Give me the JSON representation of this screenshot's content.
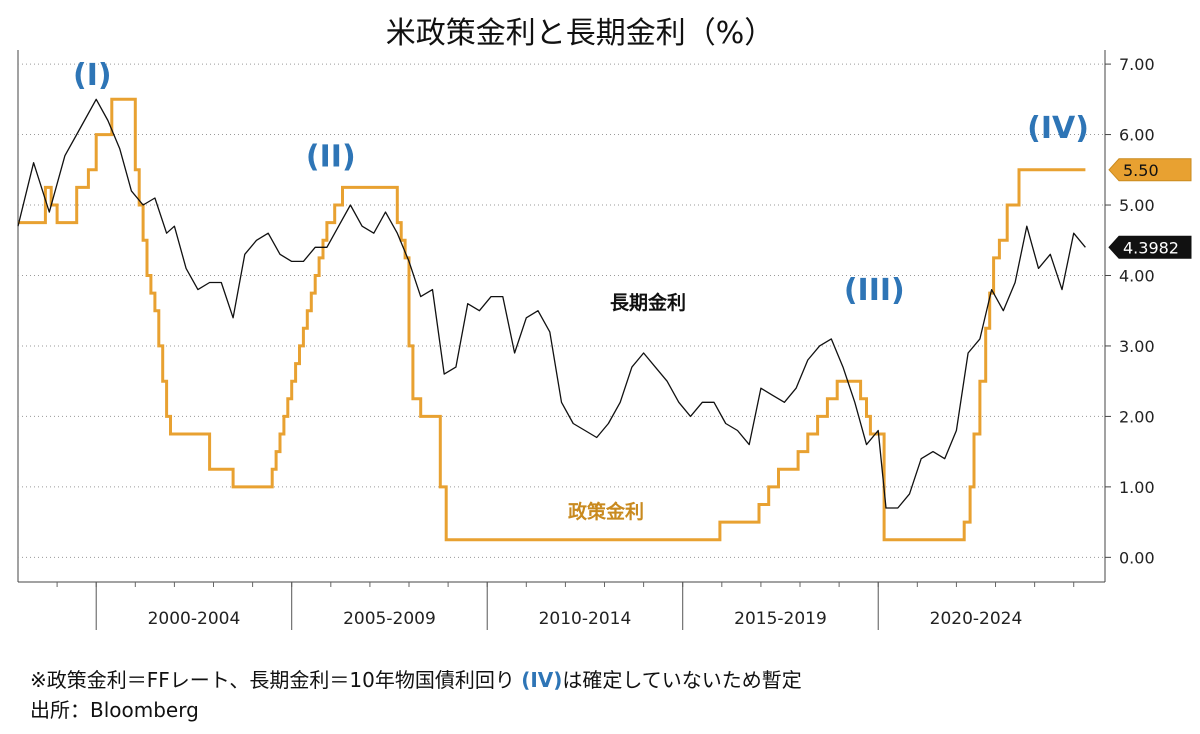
{
  "chart_data": {
    "type": "line",
    "title": "米政策金利と長期金利（%）",
    "ylim": [
      -0.35,
      7.2
    ],
    "yticks": [
      "7.00",
      "6.00",
      "5.00",
      "4.00",
      "3.00",
      "2.00",
      "1.00",
      "0.00"
    ],
    "xlim": [
      1998.0,
      2025.8
    ],
    "x_period_labels": [
      "2000-2004",
      "2005-2009",
      "2010-2014",
      "2015-2019",
      "2020-2024"
    ],
    "grid": "horizontal-dotted",
    "y_axis_side": "right",
    "phase_labels": [
      {
        "label": "(I)",
        "x": 1999.9,
        "y": 6.7
      },
      {
        "label": "(II)",
        "x": 2006.0,
        "y": 5.55
      },
      {
        "label": "(III)",
        "x": 2019.9,
        "y": 3.65
      },
      {
        "label": "(IV)",
        "x": 2024.6,
        "y": 5.95
      }
    ],
    "series": [
      {
        "name": "長期金利",
        "color": "#111111",
        "last_value_label": "4.3982",
        "x": [
          1998.0,
          1998.4,
          1998.8,
          1999.2,
          1999.6,
          2000.0,
          2000.3,
          2000.6,
          2000.9,
          2001.2,
          2001.5,
          2001.8,
          2002.0,
          2002.3,
          2002.6,
          2002.9,
          2003.2,
          2003.5,
          2003.8,
          2004.1,
          2004.4,
          2004.7,
          2005.0,
          2005.3,
          2005.6,
          2005.9,
          2006.2,
          2006.5,
          2006.8,
          2007.1,
          2007.4,
          2007.7,
          2008.0,
          2008.3,
          2008.6,
          2008.9,
          2009.2,
          2009.5,
          2009.8,
          2010.1,
          2010.4,
          2010.7,
          2011.0,
          2011.3,
          2011.6,
          2011.9,
          2012.2,
          2012.5,
          2012.8,
          2013.1,
          2013.4,
          2013.7,
          2014.0,
          2014.3,
          2014.6,
          2014.9,
          2015.2,
          2015.5,
          2015.8,
          2016.1,
          2016.4,
          2016.7,
          2017.0,
          2017.3,
          2017.6,
          2017.9,
          2018.2,
          2018.5,
          2018.8,
          2019.1,
          2019.4,
          2019.7,
          2020.0,
          2020.2,
          2020.5,
          2020.8,
          2021.1,
          2021.4,
          2021.7,
          2022.0,
          2022.3,
          2022.6,
          2022.9,
          2023.2,
          2023.5,
          2023.8,
          2024.1,
          2024.4,
          2024.7,
          2025.0,
          2025.3
        ],
        "values": [
          4.7,
          5.6,
          4.9,
          5.7,
          6.1,
          6.5,
          6.2,
          5.8,
          5.2,
          5.0,
          5.1,
          4.6,
          4.7,
          4.1,
          3.8,
          3.9,
          3.9,
          3.4,
          4.3,
          4.5,
          4.6,
          4.3,
          4.2,
          4.2,
          4.4,
          4.4,
          4.7,
          5.0,
          4.7,
          4.6,
          4.9,
          4.6,
          4.2,
          3.7,
          3.8,
          2.6,
          2.7,
          3.6,
          3.5,
          3.7,
          3.7,
          2.9,
          3.4,
          3.5,
          3.2,
          2.2,
          1.9,
          1.8,
          1.7,
          1.9,
          2.2,
          2.7,
          2.9,
          2.7,
          2.5,
          2.2,
          2.0,
          2.2,
          2.2,
          1.9,
          1.8,
          1.6,
          2.4,
          2.3,
          2.2,
          2.4,
          2.8,
          3.0,
          3.1,
          2.7,
          2.2,
          1.6,
          1.8,
          0.7,
          0.7,
          0.9,
          1.4,
          1.5,
          1.4,
          1.8,
          2.9,
          3.1,
          3.8,
          3.5,
          3.9,
          4.7,
          4.1,
          4.3,
          3.8,
          4.6,
          4.4
        ]
      },
      {
        "name": "政策金利",
        "color": "#e8a131",
        "last_value_label": "5.50",
        "x": [
          1998.0,
          1998.7,
          1998.85,
          1999.0,
          1999.5,
          1999.8,
          2000.0,
          2000.4,
          2001.0,
          2001.1,
          2001.2,
          2001.3,
          2001.4,
          2001.5,
          2001.6,
          2001.7,
          2001.8,
          2001.9,
          2002.0,
          2002.9,
          2003.5,
          2004.5,
          2004.6,
          2004.7,
          2004.8,
          2004.9,
          2005.0,
          2005.1,
          2005.2,
          2005.3,
          2005.4,
          2005.5,
          2005.6,
          2005.7,
          2005.8,
          2005.9,
          2006.0,
          2006.1,
          2006.2,
          2006.3,
          2006.5,
          2007.7,
          2007.8,
          2007.9,
          2008.0,
          2008.1,
          2008.3,
          2008.8,
          2008.95,
          2015.95,
          2016.95,
          2017.2,
          2017.45,
          2017.95,
          2018.2,
          2018.45,
          2018.7,
          2018.95,
          2019.55,
          2019.7,
          2019.8,
          2020.15,
          2022.2,
          2022.35,
          2022.45,
          2022.6,
          2022.75,
          2022.85,
          2022.95,
          2023.1,
          2023.3,
          2023.6,
          2025.3
        ],
        "values": [
          4.75,
          5.25,
          5.0,
          4.75,
          5.25,
          5.5,
          6.0,
          6.5,
          5.5,
          5.0,
          4.5,
          4.0,
          3.75,
          3.5,
          3.0,
          2.5,
          2.0,
          1.75,
          1.75,
          1.25,
          1.0,
          1.25,
          1.5,
          1.75,
          2.0,
          2.25,
          2.5,
          2.75,
          3.0,
          3.25,
          3.5,
          3.75,
          4.0,
          4.25,
          4.5,
          4.75,
          4.75,
          5.0,
          5.0,
          5.25,
          5.25,
          4.75,
          4.5,
          4.25,
          3.0,
          2.25,
          2.0,
          1.0,
          0.25,
          0.5,
          0.75,
          1.0,
          1.25,
          1.5,
          1.75,
          2.0,
          2.25,
          2.5,
          2.25,
          2.0,
          1.75,
          0.25,
          0.5,
          1.0,
          1.75,
          2.5,
          3.25,
          3.75,
          4.25,
          4.5,
          5.0,
          5.5,
          5.5
        ]
      }
    ]
  },
  "series_labels": {
    "long_rate": "長期金利",
    "policy_rate": "政策金利"
  },
  "footnote": {
    "line1_prefix": "※政策金利＝FFレート、長期金利＝10年物国債利回り ",
    "line1_highlight": "(IV)",
    "line1_suffix": "は確定していないため暫定",
    "line2": "出所：Bloomberg"
  },
  "colors": {
    "long_rate": "#111111",
    "policy_rate": "#e8a131",
    "phase_label": "#2e75b6"
  }
}
